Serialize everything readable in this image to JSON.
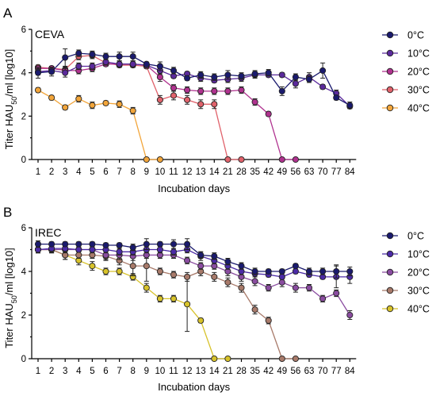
{
  "days": [
    "1",
    "2",
    "3",
    "4",
    "5",
    "6",
    "7",
    "8",
    "9",
    "10",
    "11",
    "12",
    "13",
    "14",
    "21",
    "28",
    "35",
    "42",
    "49",
    "56",
    "63",
    "70",
    "77",
    "84"
  ],
  "legend_labels": [
    "0°C",
    "10°C",
    "20°C",
    "30°C",
    "40°C"
  ],
  "palette": [
    "#1a1a6e",
    "#5b2a9c",
    "#b0328f",
    "#e0626b",
    "#f2a53a",
    "#1a1a6e",
    "#4b2aa6",
    "#8a4ca0",
    "#a87a6a",
    "#d7c22a"
  ],
  "chart_data": [
    {
      "type": "line",
      "panel_label": "A",
      "title": "CEVA",
      "xlabel": "Incubation days",
      "ylabel": "Titer HAU50/ml [log10]",
      "ylabel_parts": {
        "main": "Titer HAU",
        "sub": "50",
        "rest": "/ml [log10]"
      },
      "ylim": [
        0,
        6
      ],
      "yticks": [
        "0",
        "2",
        "4",
        "6"
      ],
      "grid": false,
      "legend_position": "right",
      "series": [
        {
          "name": "0°C",
          "values": [
            4.0,
            4.05,
            4.7,
            4.9,
            4.85,
            4.75,
            4.75,
            4.75,
            4.4,
            4.3,
            4.1,
            3.75,
            3.9,
            3.8,
            3.9,
            3.85,
            3.95,
            4.0,
            3.15,
            3.8,
            3.7,
            4.1,
            2.85,
            2.5
          ],
          "errors": [
            0.25,
            0.2,
            0.4,
            0.15,
            0.15,
            0.15,
            0.2,
            0.2,
            0.1,
            0.2,
            0.15,
            0.1,
            0.15,
            0.15,
            0.2,
            0.15,
            0.15,
            0.15,
            0.2,
            0.15,
            0.15,
            0.35,
            0.1,
            0.15
          ]
        },
        {
          "name": "10°C",
          "values": [
            4.05,
            4.1,
            4.0,
            4.3,
            4.3,
            4.5,
            4.4,
            4.4,
            4.35,
            4.1,
            3.85,
            3.95,
            3.75,
            3.65,
            3.7,
            3.75,
            3.9,
            3.9,
            3.9,
            3.5,
            3.8,
            3.35,
            3.05,
            2.45
          ],
          "errors": [
            0.15,
            0.15,
            0.2,
            0.15,
            0.15,
            0.15,
            0.15,
            0.15,
            0.1,
            0.15,
            0.1,
            0.1,
            0.15,
            0.1,
            0.15,
            0.15,
            0.15,
            0.1,
            0.1,
            0.2,
            0.2,
            0.1,
            0.15,
            0.1
          ]
        },
        {
          "name": "20°C",
          "values": [
            4.2,
            4.2,
            4.1,
            4.1,
            4.2,
            4.4,
            4.4,
            4.4,
            4.35,
            3.8,
            3.3,
            3.2,
            3.15,
            3.15,
            3.15,
            3.2,
            2.65,
            2.1,
            0.0,
            0.0
          ],
          "errors": [
            0.1,
            0.1,
            0.15,
            0.15,
            0.15,
            0.1,
            0.1,
            0.1,
            0.1,
            0.2,
            0.15,
            0.15,
            0.15,
            0.15,
            0.15,
            0.15,
            0.15,
            0.1,
            0.0,
            0.0
          ]
        },
        {
          "name": "30°C",
          "values": [
            4.25,
            4.2,
            4.15,
            4.75,
            4.8,
            4.45,
            4.35,
            4.35,
            4.3,
            2.75,
            2.95,
            2.75,
            2.55,
            2.55,
            0.0,
            0.0
          ],
          "errors": [
            0.1,
            0.1,
            0.15,
            0.15,
            0.15,
            0.1,
            0.1,
            0.1,
            0.1,
            0.2,
            0.2,
            0.2,
            0.2,
            0.2,
            0.0,
            0.0
          ]
        },
        {
          "name": "40°C",
          "values": [
            3.2,
            2.85,
            2.4,
            2.8,
            2.5,
            2.6,
            2.55,
            2.25,
            0.0,
            0.0
          ],
          "errors": [
            0.1,
            0.1,
            0.1,
            0.15,
            0.15,
            0.1,
            0.15,
            0.15,
            0.0,
            0.0
          ]
        }
      ]
    },
    {
      "type": "line",
      "panel_label": "B",
      "title": "IREC",
      "xlabel": "Incubation days",
      "ylabel": "Titer HAU50/ml [log10]",
      "ylabel_parts": {
        "main": "Titer HAU",
        "sub": "50",
        "rest": "/ml [log10]"
      },
      "ylim": [
        0,
        6
      ],
      "yticks": [
        "0",
        "2",
        "4",
        "6"
      ],
      "grid": false,
      "legend_position": "right",
      "series": [
        {
          "name": "0°C",
          "values": [
            5.25,
            5.25,
            5.25,
            5.25,
            5.25,
            5.2,
            5.2,
            5.1,
            5.25,
            5.25,
            5.25,
            5.25,
            4.75,
            4.7,
            4.45,
            4.25,
            4.0,
            4.0,
            4.0,
            4.25,
            4.0,
            4.0,
            4.0,
            4.0
          ],
          "errors": [
            0.15,
            0.1,
            0.1,
            0.1,
            0.1,
            0.1,
            0.1,
            0.15,
            0.25,
            0.1,
            0.2,
            0.25,
            0.15,
            0.15,
            0.15,
            0.15,
            0.15,
            0.1,
            0.1,
            0.1,
            0.15,
            0.15,
            0.3,
            0.2
          ]
        },
        {
          "name": "10°C",
          "values": [
            5.0,
            5.05,
            5.05,
            5.0,
            5.0,
            5.0,
            4.9,
            4.9,
            5.0,
            5.0,
            4.9,
            5.0,
            4.7,
            4.5,
            4.25,
            4.0,
            3.9,
            3.85,
            3.75,
            4.0,
            3.85,
            3.75,
            3.75,
            3.75
          ],
          "errors": [
            0.15,
            0.15,
            0.15,
            0.1,
            0.15,
            0.15,
            0.15,
            0.15,
            0.15,
            0.15,
            0.15,
            0.15,
            0.2,
            0.15,
            0.15,
            0.15,
            0.15,
            0.1,
            0.1,
            0.1,
            0.1,
            0.1,
            0.5,
            0.3
          ]
        },
        {
          "name": "20°C",
          "values": [
            5.0,
            5.0,
            5.0,
            5.0,
            5.0,
            4.75,
            4.75,
            4.7,
            4.75,
            4.75,
            4.75,
            4.5,
            4.25,
            4.25,
            4.0,
            3.75,
            3.55,
            3.25,
            3.5,
            3.25,
            3.25,
            2.75,
            3.0,
            2.0
          ],
          "errors": [
            0.15,
            0.15,
            0.15,
            0.1,
            0.1,
            0.2,
            0.2,
            0.2,
            0.15,
            0.15,
            0.15,
            0.15,
            0.15,
            0.15,
            0.2,
            0.2,
            0.2,
            0.15,
            0.2,
            0.2,
            0.15,
            0.15,
            0.15,
            0.2
          ]
        },
        {
          "name": "30°C",
          "values": [
            5.0,
            5.0,
            4.75,
            4.75,
            4.75,
            4.7,
            4.5,
            4.25,
            4.25,
            4.0,
            3.85,
            3.75,
            4.0,
            3.75,
            3.5,
            3.25,
            2.25,
            1.75,
            0.0,
            0.0
          ],
          "errors": [
            0.15,
            0.15,
            0.2,
            0.15,
            0.15,
            0.2,
            0.2,
            0.45,
            0.7,
            0.15,
            0.15,
            0.2,
            0.2,
            0.2,
            0.2,
            0.2,
            0.2,
            0.15,
            0.0,
            0.0
          ]
        },
        {
          "name": "40°C",
          "values": [
            5.0,
            5.0,
            4.75,
            4.5,
            4.25,
            4.0,
            4.0,
            3.75,
            3.25,
            2.75,
            2.75,
            2.5,
            1.75,
            0.0,
            0.0
          ],
          "errors": [
            0.15,
            0.15,
            0.2,
            0.2,
            0.2,
            0.15,
            0.15,
            0.15,
            0.2,
            0.15,
            0.15,
            1.25,
            0.1,
            0.0,
            0.0
          ]
        }
      ]
    }
  ]
}
